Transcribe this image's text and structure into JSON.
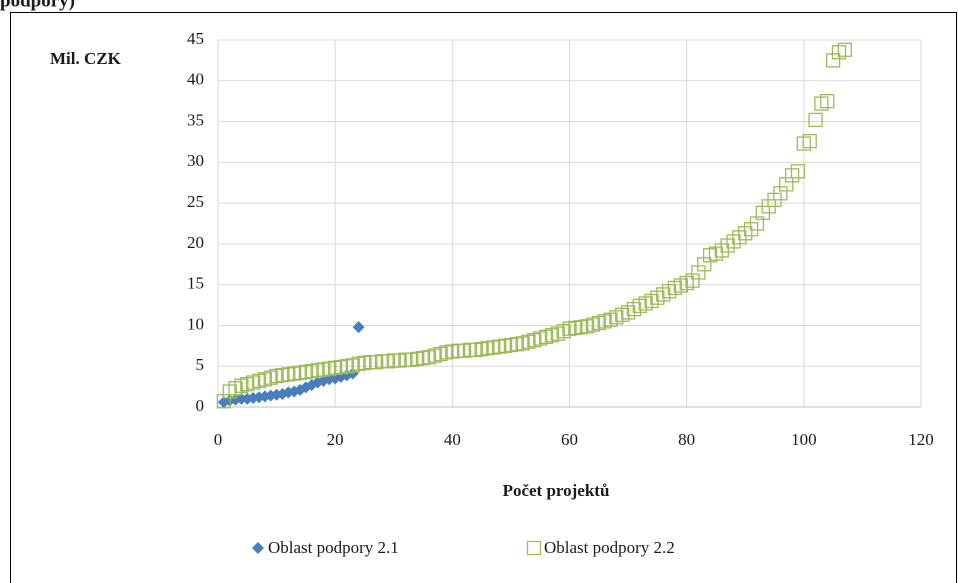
{
  "header": {
    "title": "podpory)"
  },
  "chart_data": {
    "type": "scatter",
    "ylabel": "Mil. CZK",
    "xlabel": "Počet projektů",
    "xlim": [
      0,
      120
    ],
    "xticks": [
      0,
      20,
      40,
      60,
      80,
      100,
      120
    ],
    "ylim": [
      0,
      45
    ],
    "yticks": [
      0,
      5,
      10,
      15,
      20,
      25,
      30,
      35,
      40,
      45
    ],
    "grid": true,
    "legend": "bottom",
    "series": [
      {
        "name": "Oblast podpory 2.1",
        "color": "#4a7ebb",
        "marker": "diamond",
        "x": [
          1,
          2,
          3,
          4,
          5,
          6,
          7,
          8,
          9,
          10,
          11,
          12,
          13,
          14,
          15,
          16,
          17,
          18,
          19,
          20,
          21,
          22,
          23,
          24
        ],
        "values": [
          0.6,
          0.8,
          0.9,
          1.0,
          1.0,
          1.1,
          1.2,
          1.3,
          1.4,
          1.5,
          1.6,
          1.8,
          1.9,
          2.1,
          2.4,
          2.7,
          3.0,
          3.2,
          3.4,
          3.5,
          3.7,
          3.9,
          4.1,
          9.8
        ]
      },
      {
        "name": "Oblast podpory 2.2",
        "color": "#9bbb59",
        "marker": "square",
        "x": [
          1,
          2,
          3,
          4,
          5,
          6,
          7,
          8,
          9,
          10,
          11,
          12,
          13,
          14,
          15,
          16,
          17,
          18,
          19,
          20,
          21,
          22,
          23,
          24,
          25,
          26,
          27,
          28,
          29,
          30,
          31,
          32,
          33,
          34,
          35,
          36,
          37,
          38,
          39,
          40,
          41,
          42,
          43,
          44,
          45,
          46,
          47,
          48,
          49,
          50,
          51,
          52,
          53,
          54,
          55,
          56,
          57,
          58,
          59,
          60,
          61,
          62,
          63,
          64,
          65,
          66,
          67,
          68,
          69,
          70,
          71,
          72,
          73,
          74,
          75,
          76,
          77,
          78,
          79,
          80,
          81,
          82,
          83,
          84,
          85,
          86,
          87,
          88,
          89,
          90,
          91,
          92,
          93,
          94,
          95,
          96,
          97,
          98,
          99,
          100,
          101,
          102,
          103,
          104,
          105,
          106,
          107
        ],
        "values": [
          0.7,
          1.9,
          2.3,
          2.6,
          2.8,
          3.0,
          3.2,
          3.4,
          3.6,
          3.8,
          3.9,
          4.0,
          4.1,
          4.2,
          4.3,
          4.4,
          4.5,
          4.6,
          4.7,
          4.8,
          4.9,
          5.0,
          5.1,
          5.3,
          5.4,
          5.5,
          5.5,
          5.6,
          5.6,
          5.7,
          5.7,
          5.8,
          5.8,
          5.9,
          6.0,
          6.1,
          6.3,
          6.5,
          6.7,
          6.8,
          6.9,
          6.9,
          7.0,
          7.0,
          7.1,
          7.2,
          7.3,
          7.4,
          7.5,
          7.6,
          7.7,
          7.8,
          8.0,
          8.2,
          8.4,
          8.6,
          8.8,
          9.0,
          9.3,
          9.6,
          9.7,
          9.8,
          9.9,
          10.1,
          10.3,
          10.5,
          10.7,
          11.0,
          11.3,
          11.6,
          12.0,
          12.4,
          12.7,
          13.0,
          13.4,
          13.8,
          14.2,
          14.6,
          14.9,
          15.2,
          15.5,
          16.5,
          17.5,
          18.6,
          18.8,
          19.2,
          19.8,
          20.3,
          20.8,
          21.3,
          21.8,
          22.5,
          23.8,
          24.6,
          25.4,
          26.2,
          27.3,
          28.4,
          28.9,
          32.3,
          32.6,
          35.2,
          37.2,
          37.5,
          42.5,
          43.5,
          43.8
        ]
      }
    ]
  }
}
